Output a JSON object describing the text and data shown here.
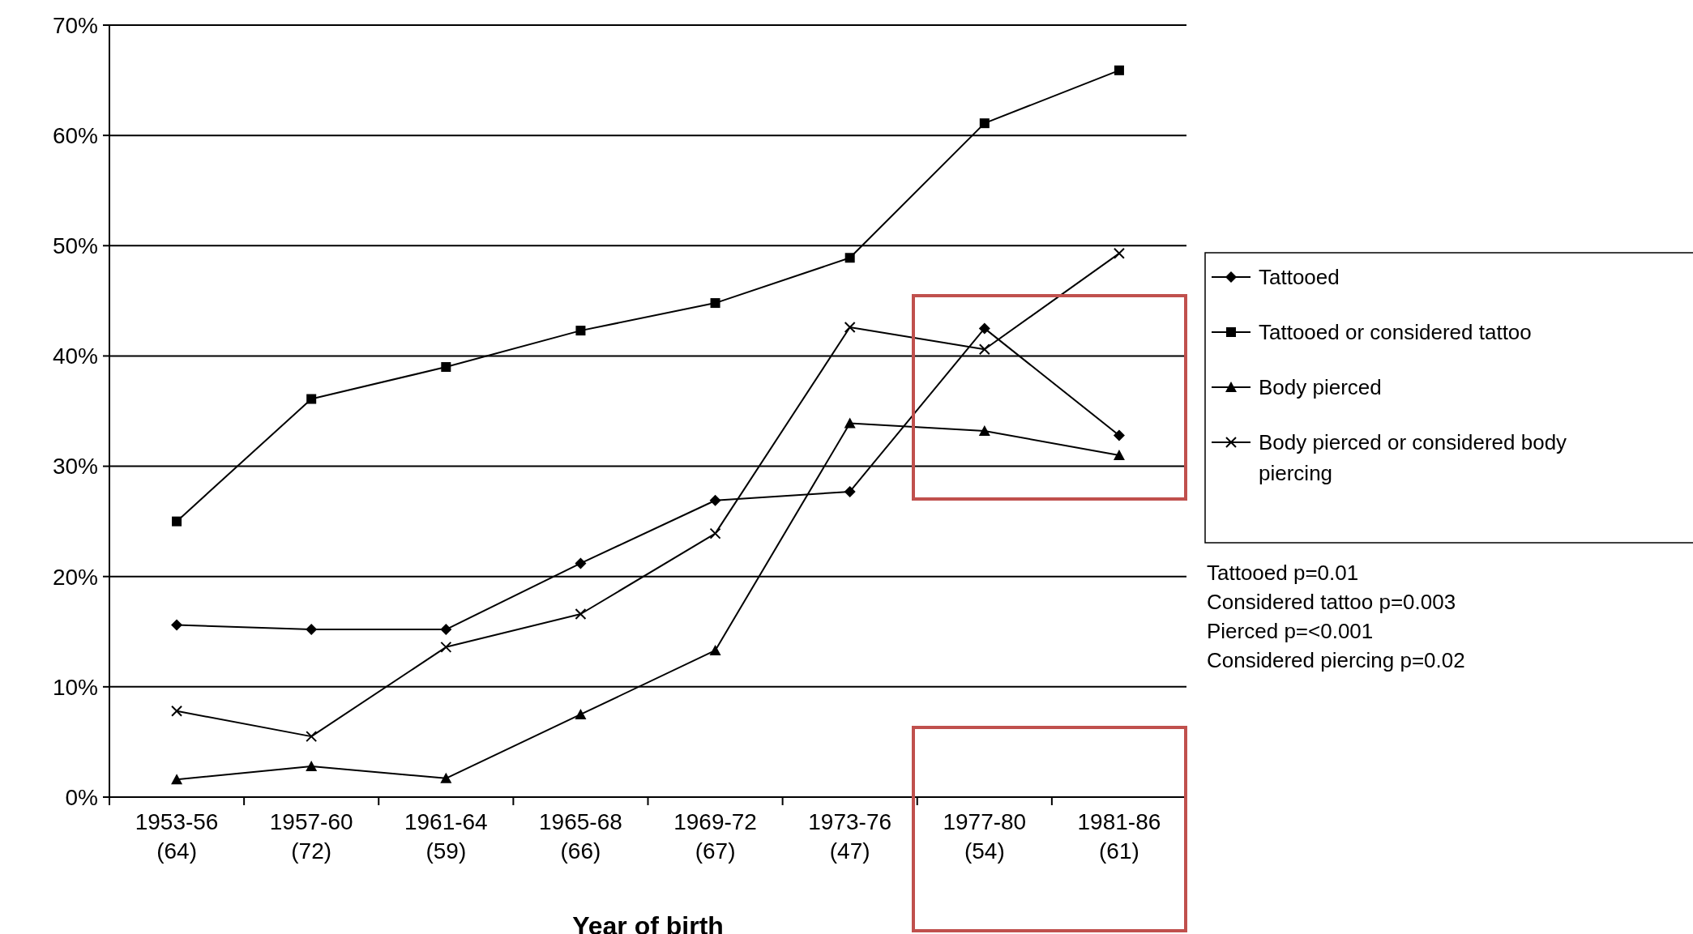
{
  "chart_data": {
    "type": "line",
    "xlabel": "Year of birth",
    "categories": [
      "1953-56\n(64)",
      "1957-60\n(72)",
      "1961-64\n(59)",
      "1965-68\n(66)",
      "1969-72\n(67)",
      "1973-76\n(47)",
      "1977-80\n(54)",
      "1981-86\n(61)"
    ],
    "series": [
      {
        "name": "Tattooed",
        "color": "#000000",
        "marker": "diamond",
        "values": [
          15.6,
          15.2,
          15.2,
          21.2,
          26.9,
          27.7,
          42.5,
          32.8
        ]
      },
      {
        "name": "Tattooed or considered tattoo",
        "color": "#000000",
        "marker": "square",
        "values": [
          25,
          36.1,
          39,
          42.3,
          44.8,
          48.9,
          61.1,
          65.9
        ]
      },
      {
        "name": "Body pierced",
        "color": "#000000",
        "marker": "triangle",
        "values": [
          1.6,
          2.8,
          1.7,
          7.5,
          13.3,
          33.9,
          33.2,
          31
        ]
      },
      {
        "name": "Body pierced or considered body piercing",
        "color": "#000000",
        "marker": "cross",
        "values": [
          7.8,
          5.5,
          13.6,
          16.6,
          23.9,
          42.6,
          40.6,
          49.3
        ]
      }
    ],
    "ylim": [
      0,
      70
    ],
    "yticks": [
      {
        "value": 0,
        "label": "0%"
      },
      {
        "value": 10,
        "label": "10%"
      },
      {
        "value": 20,
        "label": "20%"
      },
      {
        "value": 30,
        "label": "30%"
      },
      {
        "value": 40,
        "label": "40%"
      },
      {
        "value": 50,
        "label": "50%"
      },
      {
        "value": 60,
        "label": "60%"
      },
      {
        "value": 70,
        "label": "70%"
      }
    ],
    "grid": "y",
    "legend": "right",
    "line_style": "solid",
    "annotations": [
      "Tattooed p=0.01",
      "Considered tattoo p=0.003",
      "Pierced p=<0.001",
      "Considered piercing p=0.02"
    ]
  }
}
